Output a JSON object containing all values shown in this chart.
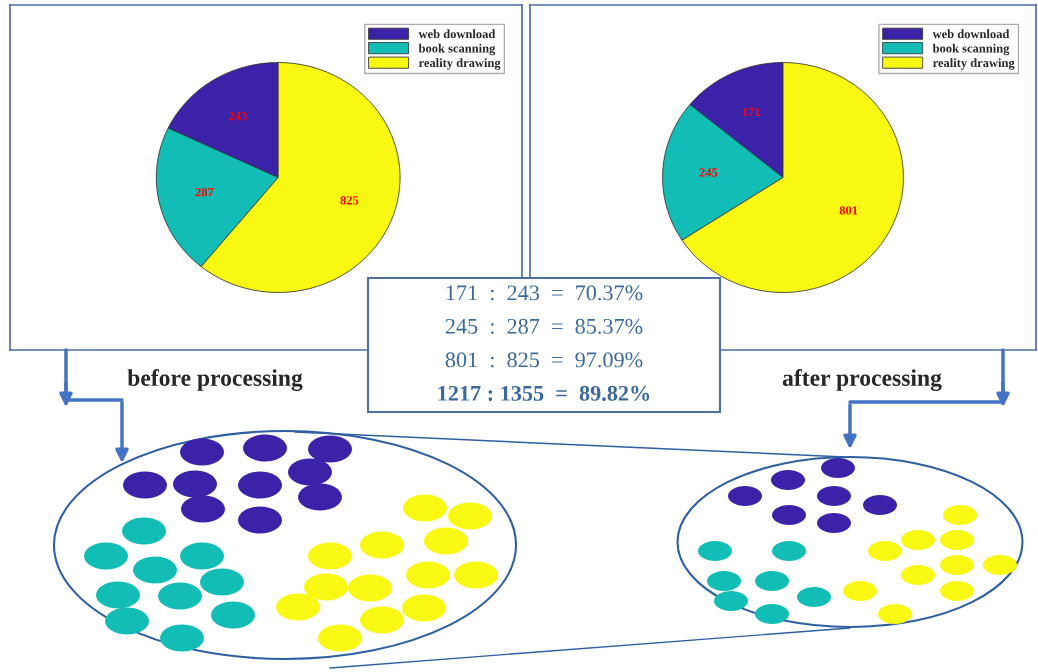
{
  "chart_data": [
    {
      "type": "pie",
      "categories": [
        "web download",
        "book scanning",
        "reality drawing"
      ],
      "values": [
        243,
        287,
        825
      ],
      "colors": [
        "#3b22a8",
        "#12bdb5",
        "#f8f812"
      ],
      "data_labels": true,
      "legend": "top right",
      "annotations": [
        "before processing",
        "171  :  243  =  70.37%",
        "245  :  287  =  85.37%",
        "801  :  825  =  97.09%",
        "1217 : 1355  =  89.82%"
      ]
    },
    {
      "type": "pie",
      "categories": [
        "web download",
        "book scanning",
        "reality drawing"
      ],
      "values": [
        171,
        245,
        801
      ],
      "colors": [
        "#3b22a8",
        "#12bdb5",
        "#f8f812"
      ],
      "data_labels": true,
      "legend": "top right",
      "annotations": [
        "after processing"
      ]
    }
  ]
}
